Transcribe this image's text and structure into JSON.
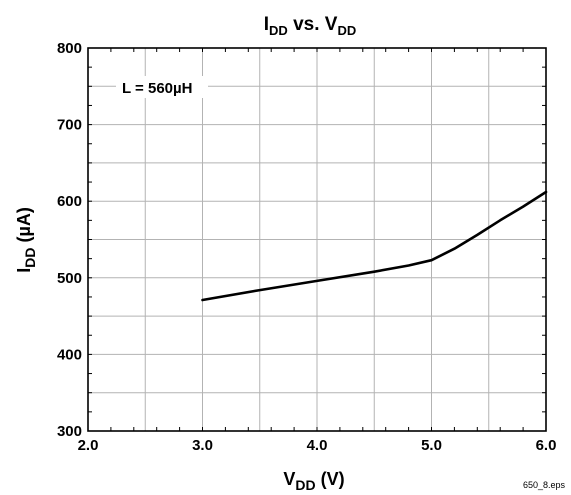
{
  "chart_data": {
    "type": "line",
    "title": {
      "main": "I",
      "sub": "DD",
      "mid": " vs. V",
      "sub2": "DD"
    },
    "xlabel": {
      "main": "V",
      "sub": "DD",
      "rest": " (V)"
    },
    "ylabel": {
      "main": "I",
      "sub": "DD",
      "rest": " (µA)"
    },
    "xlim": [
      2.0,
      6.0
    ],
    "ylim": [
      300,
      800
    ],
    "x_tick_labels": [
      "2.0",
      "3.0",
      "4.0",
      "5.0",
      "6.0"
    ],
    "y_tick_labels": [
      "300",
      "400",
      "500",
      "600",
      "700",
      "800"
    ],
    "grid": true,
    "annotation": "L = 560µH",
    "series": [
      {
        "x": [
          3.0,
          3.5,
          4.0,
          4.5,
          4.8,
          5.0,
          5.2,
          5.4,
          5.6,
          5.8,
          6.0
        ],
        "y": [
          471,
          484,
          496,
          508,
          516,
          523,
          538,
          556,
          575,
          593,
          612
        ]
      }
    ],
    "footer": "650_8.eps"
  }
}
